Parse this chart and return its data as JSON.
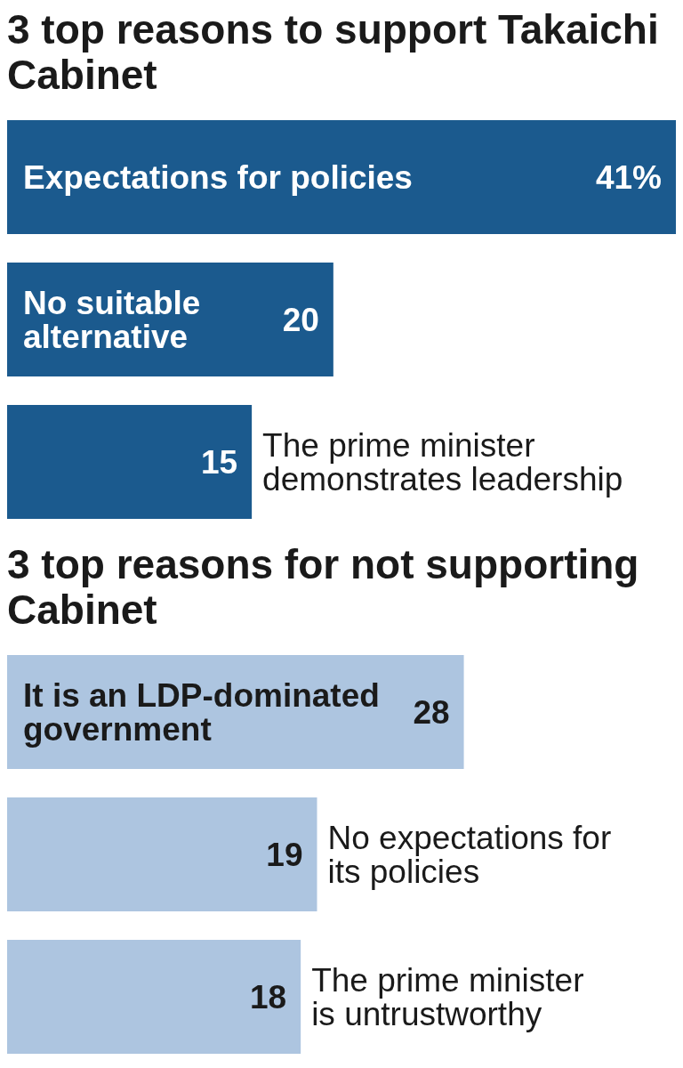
{
  "chart_data": [
    {
      "type": "bar",
      "orientation": "horizontal",
      "title": "3 top reasons to support Takaichi Cabinet",
      "categories": [
        "Expectations for policies",
        "No suitable alternative",
        "The prime minister demonstrates leadership"
      ],
      "values": [
        41,
        20,
        15
      ],
      "value_labels": [
        "41%",
        "20",
        "15"
      ],
      "color": "#1b5a8e",
      "tick_labels": false,
      "grid": false,
      "legend": false
    },
    {
      "type": "bar",
      "orientation": "horizontal",
      "title": "3 top reasons for not supporting Cabinet",
      "categories": [
        "It is an LDP-dominated government",
        "No expectations for its policies",
        "The prime minister is untrustworthy"
      ],
      "values": [
        28,
        19,
        18
      ],
      "value_labels": [
        "28",
        "19",
        "18"
      ],
      "color": "#adc5e0",
      "tick_labels": false,
      "grid": false,
      "legend": false
    }
  ]
}
